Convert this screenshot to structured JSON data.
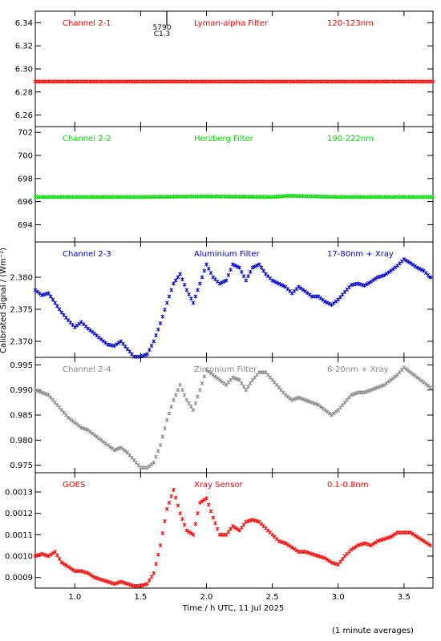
{
  "xlabel": "Time / h UTC, 11 Jul 2025",
  "ylabel": "Calibrated Signal / (Wm⁻²)",
  "footnote": "(1 minute averages)",
  "xticks": [
    "1.0",
    "1.5",
    "2.0",
    "2.5",
    "3.0",
    "3.5"
  ],
  "marker": {
    "label_top": "5790",
    "label_bottom": "C1.3"
  },
  "chart_data": [
    {
      "type": "scatter",
      "name": "Channel 2-1",
      "filter": "Lyman-alpha Filter",
      "band": "120-123nm",
      "color": "#ff0000",
      "xlim": [
        0.7,
        3.72
      ],
      "ylim": [
        6.25,
        6.35
      ],
      "yticks": [
        "6.26",
        "6.28",
        "6.30",
        "6.32",
        "6.34"
      ],
      "x": [
        0.7,
        1.0,
        1.5,
        2.0,
        2.5,
        3.0,
        3.5,
        3.72
      ],
      "y": [
        6.289,
        6.289,
        6.289,
        6.289,
        6.289,
        6.289,
        6.289,
        6.289
      ]
    },
    {
      "type": "scatter",
      "name": "Channel 2-2",
      "filter": "Herzberg Filter",
      "band": "190-222nm",
      "color": "#00dd00",
      "xlim": [
        0.7,
        3.72
      ],
      "ylim": [
        692.5,
        702.5
      ],
      "yticks": [
        "694",
        "696",
        "698",
        "700",
        "702"
      ],
      "x": [
        0.7,
        1.0,
        1.5,
        2.0,
        2.5,
        2.63,
        3.0,
        3.5,
        3.72
      ],
      "y": [
        696.4,
        696.4,
        696.4,
        696.45,
        696.4,
        696.5,
        696.4,
        696.4,
        696.4
      ]
    },
    {
      "type": "scatter",
      "name": "Channel 2-3",
      "filter": "Aluminium Filter",
      "band": "17-80nm + Xray",
      "color": "#0000cc",
      "xlim": [
        0.7,
        3.72
      ],
      "ylim": [
        2.3675,
        2.3855
      ],
      "yticks": [
        "2.370",
        "2.375",
        "2.380"
      ],
      "x": [
        0.7,
        0.75,
        0.8,
        0.85,
        0.9,
        0.95,
        1.0,
        1.05,
        1.1,
        1.15,
        1.2,
        1.25,
        1.3,
        1.35,
        1.4,
        1.45,
        1.5,
        1.55,
        1.6,
        1.65,
        1.7,
        1.75,
        1.8,
        1.85,
        1.9,
        1.95,
        2.0,
        2.05,
        2.1,
        2.15,
        2.2,
        2.25,
        2.3,
        2.35,
        2.4,
        2.45,
        2.5,
        2.55,
        2.6,
        2.65,
        2.7,
        2.75,
        2.8,
        2.85,
        2.9,
        2.95,
        3.0,
        3.05,
        3.1,
        3.15,
        3.2,
        3.25,
        3.3,
        3.35,
        3.4,
        3.45,
        3.5,
        3.55,
        3.6,
        3.65,
        3.7
      ],
      "y": [
        2.378,
        2.3772,
        2.3775,
        2.376,
        2.3745,
        2.3733,
        2.3722,
        2.373,
        2.372,
        2.3712,
        2.3703,
        2.3695,
        2.3693,
        2.37,
        2.3688,
        2.3676,
        2.3676,
        2.368,
        2.37,
        2.3728,
        2.376,
        2.379,
        2.3805,
        2.378,
        2.376,
        2.379,
        2.382,
        2.38,
        2.379,
        2.3795,
        2.382,
        2.3815,
        2.3795,
        2.3815,
        2.382,
        2.3805,
        2.3795,
        2.379,
        2.3785,
        2.3775,
        2.3785,
        2.3778,
        2.377,
        2.377,
        2.3762,
        2.3757,
        2.3765,
        2.3777,
        2.3788,
        2.379,
        2.3787,
        2.3793,
        2.38,
        2.3803,
        2.381,
        2.3818,
        2.3828,
        2.3822,
        2.3815,
        2.381,
        2.38
      ]
    },
    {
      "type": "scatter",
      "name": "Channel 2-4",
      "filter": "Zirconium Filter",
      "band": "6-20nm + Xray",
      "color": "#888888",
      "xlim": [
        0.7,
        3.72
      ],
      "ylim": [
        0.9735,
        0.9965
      ],
      "yticks": [
        "0.975",
        "0.980",
        "0.985",
        "0.990",
        "0.995"
      ],
      "x": [
        0.7,
        0.75,
        0.8,
        0.85,
        0.9,
        0.95,
        1.0,
        1.05,
        1.1,
        1.15,
        1.2,
        1.25,
        1.3,
        1.35,
        1.4,
        1.45,
        1.5,
        1.55,
        1.6,
        1.65,
        1.7,
        1.75,
        1.8,
        1.85,
        1.9,
        1.95,
        2.0,
        2.05,
        2.1,
        2.15,
        2.2,
        2.25,
        2.3,
        2.35,
        2.4,
        2.45,
        2.5,
        2.55,
        2.6,
        2.65,
        2.7,
        2.75,
        2.8,
        2.85,
        2.9,
        2.95,
        3.0,
        3.05,
        3.1,
        3.15,
        3.2,
        3.25,
        3.3,
        3.35,
        3.4,
        3.45,
        3.5,
        3.55,
        3.6,
        3.65,
        3.7
      ],
      "y": [
        0.99,
        0.9895,
        0.989,
        0.9875,
        0.986,
        0.9845,
        0.9835,
        0.9825,
        0.982,
        0.981,
        0.98,
        0.979,
        0.978,
        0.9785,
        0.9775,
        0.976,
        0.9745,
        0.9745,
        0.9755,
        0.979,
        0.984,
        0.988,
        0.991,
        0.988,
        0.986,
        0.99,
        0.994,
        0.993,
        0.992,
        0.991,
        0.9925,
        0.992,
        0.99,
        0.992,
        0.9935,
        0.9935,
        0.992,
        0.9905,
        0.989,
        0.988,
        0.9885,
        0.988,
        0.9875,
        0.987,
        0.986,
        0.985,
        0.986,
        0.9875,
        0.989,
        0.9895,
        0.9895,
        0.99,
        0.9905,
        0.991,
        0.992,
        0.993,
        0.9945,
        0.9935,
        0.9925,
        0.9915,
        0.9905
      ]
    },
    {
      "type": "scatter",
      "name": "GOES",
      "filter": "Xray Sensor",
      "band": "0.1-0.8nm",
      "color": "#ff0000",
      "xlim": [
        0.7,
        3.72
      ],
      "ylim": [
        0.00085,
        0.00139
      ],
      "yticks": [
        "0.0009",
        "0.0010",
        "0.0011",
        "0.0012",
        "0.0013"
      ],
      "x": [
        0.7,
        0.75,
        0.8,
        0.85,
        0.9,
        0.95,
        1.0,
        1.05,
        1.1,
        1.15,
        1.2,
        1.25,
        1.3,
        1.35,
        1.4,
        1.45,
        1.5,
        1.55,
        1.6,
        1.65,
        1.7,
        1.75,
        1.8,
        1.85,
        1.9,
        1.95,
        2.0,
        2.05,
        2.1,
        2.15,
        2.2,
        2.25,
        2.3,
        2.35,
        2.4,
        2.45,
        2.5,
        2.55,
        2.6,
        2.65,
        2.7,
        2.75,
        2.8,
        2.85,
        2.9,
        2.95,
        3.0,
        3.05,
        3.1,
        3.15,
        3.2,
        3.25,
        3.3,
        3.35,
        3.4,
        3.45,
        3.5,
        3.55,
        3.6,
        3.65,
        3.7
      ],
      "y": [
        0.001,
        0.00101,
        0.001,
        0.00102,
        0.00097,
        0.00095,
        0.00093,
        0.00093,
        0.00092,
        0.0009,
        0.00089,
        0.00088,
        0.00087,
        0.00088,
        0.00087,
        0.00086,
        0.00086,
        0.00087,
        0.00092,
        0.00105,
        0.00122,
        0.00131,
        0.0012,
        0.00112,
        0.0011,
        0.00125,
        0.00127,
        0.00118,
        0.0011,
        0.0011,
        0.00114,
        0.00112,
        0.00116,
        0.00117,
        0.00116,
        0.00113,
        0.0011,
        0.00107,
        0.00106,
        0.00104,
        0.00102,
        0.00102,
        0.00101,
        0.001,
        0.00099,
        0.00097,
        0.00096,
        0.001,
        0.00103,
        0.00105,
        0.00106,
        0.00105,
        0.00107,
        0.00108,
        0.00109,
        0.00111,
        0.00111,
        0.00111,
        0.00109,
        0.00107,
        0.00105
      ]
    }
  ]
}
